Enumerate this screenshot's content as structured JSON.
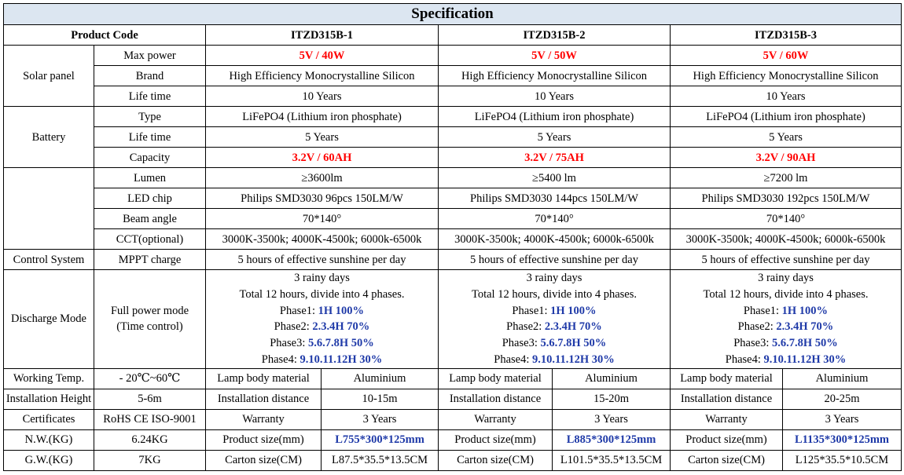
{
  "title": "Specification",
  "header": {
    "code_label": "Product Code",
    "codes": [
      "ITZD315B-1",
      "ITZD315B-2",
      "ITZD315B-3"
    ]
  },
  "groups": {
    "solar": "Solar panel",
    "battery": "Battery",
    "control": "Control System",
    "discharge": "Discharge Mode",
    "working_temp": "Working Temp.",
    "install_height": "Installation Height",
    "certificates": "Certificates",
    "nw": "N.W.(KG)",
    "gw": "G.W.(KG)"
  },
  "labels": {
    "max_power": "Max power",
    "brand": "Brand",
    "solar_life": "Life time",
    "battery_type": "Type",
    "battery_life": "Life time",
    "capacity": "Capacity",
    "lumen": "Lumen",
    "led_chip": "LED chip",
    "beam_angle": "Beam angle",
    "cct": "CCT(optional)",
    "mppt": "MPPT charge",
    "full_power_1": "Full power mode",
    "full_power_2": "(Time control)"
  },
  "products": [
    {
      "max_power": "5V / 40W",
      "brand": "High Efficiency Monocrystalline Silicon",
      "solar_life": "10 Years",
      "battery_type": "LiFePO4 (Lithium iron phosphate)",
      "battery_life": "5 Years",
      "capacity": "3.2V / 60AH",
      "lumen": "≥3600lm",
      "led_chip": "Philips SMD3030 96pcs 150LM/W",
      "beam_angle": "70*140°",
      "cct": "3000K-3500k; 4000K-4500k; 6000k-6500k",
      "mppt": "5 hours of effective sunshine per day",
      "discharge": {
        "rainy": "3 rainy days",
        "total": "Total 12 hours,  divide into 4 phases.",
        "p1_label": "Phase1: ",
        "p1_value": "1H 100%",
        "p2_label": "Phase2: ",
        "p2_value": "2.3.4H 70%",
        "p3_label": "Phase3: ",
        "p3_value": "5.6.7.8H 50%",
        "p4_label": "Phase4: ",
        "p4_value": "9.10.11.12H 30%"
      },
      "lamp_body_label": "Lamp body material",
      "lamp_body_value": "Aluminium",
      "install_distance_label": "Installation distance",
      "install_distance_value": "10-15m",
      "warranty_label": "Warranty",
      "warranty_value": "3 Years",
      "product_size_label": "Product size(mm)",
      "product_size_value": "L755*300*125mm",
      "carton_size_label": "Carton size(CM)",
      "carton_size_value": "L87.5*35.5*13.5CM"
    },
    {
      "max_power": "5V / 50W",
      "brand": "High Efficiency Monocrystalline Silicon",
      "solar_life": "10 Years",
      "battery_type": "LiFePO4 (Lithium iron phosphate)",
      "battery_life": "5 Years",
      "capacity": "3.2V / 75AH",
      "lumen": "≥5400 lm",
      "led_chip": "Philips SMD3030 144pcs 150LM/W",
      "beam_angle": "70*140°",
      "cct": "3000K-3500k; 4000K-4500k; 6000k-6500k",
      "mppt": "5 hours of effective sunshine per day",
      "discharge": {
        "rainy": "3 rainy days",
        "total": "Total 12 hours,  divide into 4 phases.",
        "p1_label": "Phase1: ",
        "p1_value": "1H 100%",
        "p2_label": "Phase2: ",
        "p2_value": "2.3.4H 70%",
        "p3_label": "Phase3: ",
        "p3_value": "5.6.7.8H 50%",
        "p4_label": "Phase4: ",
        "p4_value": "9.10.11.12H 30%"
      },
      "lamp_body_label": "Lamp body material",
      "lamp_body_value": "Aluminium",
      "install_distance_label": "Installation distance",
      "install_distance_value": "15-20m",
      "warranty_label": "Warranty",
      "warranty_value": "3 Years",
      "product_size_label": "Product size(mm)",
      "product_size_value": "L885*300*125mm",
      "carton_size_label": "Carton size(CM)",
      "carton_size_value": "L101.5*35.5*13.5CM"
    },
    {
      "max_power": "5V / 60W",
      "brand": "High Efficiency Monocrystalline Silicon",
      "solar_life": "10 Years",
      "battery_type": "LiFePO4 (Lithium iron phosphate)",
      "battery_life": "5 Years",
      "capacity": "3.2V / 90AH",
      "lumen": "≥7200 lm",
      "led_chip": "Philips SMD3030 192pcs 150LM/W",
      "beam_angle": "70*140°",
      "cct": "3000K-3500k; 4000K-4500k; 6000k-6500k",
      "mppt": "5 hours of effective sunshine per day",
      "discharge": {
        "rainy": "3 rainy days",
        "total": "Total 12 hours,  divide into 4 phases.",
        "p1_label": "Phase1: ",
        "p1_value": "1H 100%",
        "p2_label": "Phase2: ",
        "p2_value": "2.3.4H 70%",
        "p3_label": "Phase3: ",
        "p3_value": "5.6.7.8H 50%",
        "p4_label": "Phase4: ",
        "p4_value": "9.10.11.12H 30%"
      },
      "lamp_body_label": "Lamp body material",
      "lamp_body_value": "Aluminium",
      "install_distance_label": "Installation distance",
      "install_distance_value": "20-25m",
      "warranty_label": "Warranty",
      "warranty_value": "3 Years",
      "product_size_label": "Product size(mm)",
      "product_size_value": "L1135*300*125mm",
      "carton_size_label": "Carton size(CM)",
      "carton_size_value": "L125*35.5*10.5CM"
    }
  ],
  "extra": {
    "working_temp": "- 20℃~60℃",
    "install_height": "5-6m",
    "certificates": "RoHS  CE  ISO-9001",
    "nw": "6.24KG",
    "gw": "7KG"
  },
  "colors": {
    "title_bg": "#dce6f1",
    "highlight_red": "#ff0000",
    "highlight_blue": "#1f3aa8"
  }
}
